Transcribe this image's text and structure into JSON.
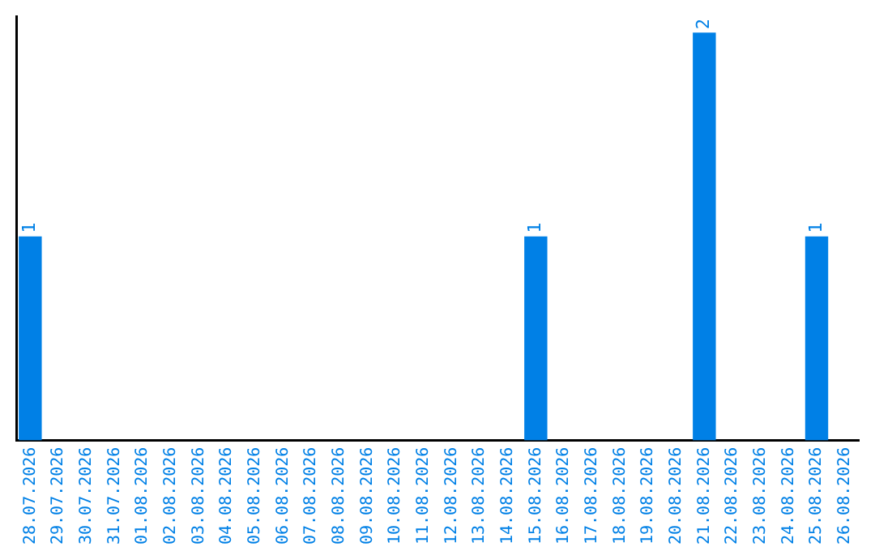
{
  "chart_data": {
    "type": "bar",
    "categories": [
      "28.07.2026",
      "29.07.2026",
      "30.07.2026",
      "31.07.2026",
      "01.08.2026",
      "02.08.2026",
      "03.08.2026",
      "04.08.2026",
      "05.08.2026",
      "06.08.2026",
      "07.08.2026",
      "08.08.2026",
      "09.08.2026",
      "10.08.2026",
      "11.08.2026",
      "12.08.2026",
      "13.08.2026",
      "14.08.2026",
      "15.08.2026",
      "16.08.2026",
      "17.08.2026",
      "18.08.2026",
      "19.08.2026",
      "20.08.2026",
      "21.08.2026",
      "22.08.2026",
      "23.08.2026",
      "24.08.2026",
      "25.08.2026",
      "26.08.2026"
    ],
    "values": [
      1,
      0,
      0,
      0,
      0,
      0,
      0,
      0,
      0,
      0,
      0,
      0,
      0,
      0,
      0,
      0,
      0,
      0,
      1,
      0,
      0,
      0,
      0,
      0,
      2,
      0,
      0,
      0,
      1,
      0
    ],
    "value_labels": [
      "1",
      null,
      null,
      null,
      null,
      null,
      null,
      null,
      null,
      null,
      null,
      null,
      null,
      null,
      null,
      null,
      null,
      null,
      "1",
      null,
      null,
      null,
      null,
      null,
      "2",
      null,
      null,
      null,
      "1",
      null
    ],
    "color": "#0080e6",
    "ylim": [
      0,
      2.08
    ],
    "tick_labels": "x",
    "grid": false,
    "legend": false
  }
}
